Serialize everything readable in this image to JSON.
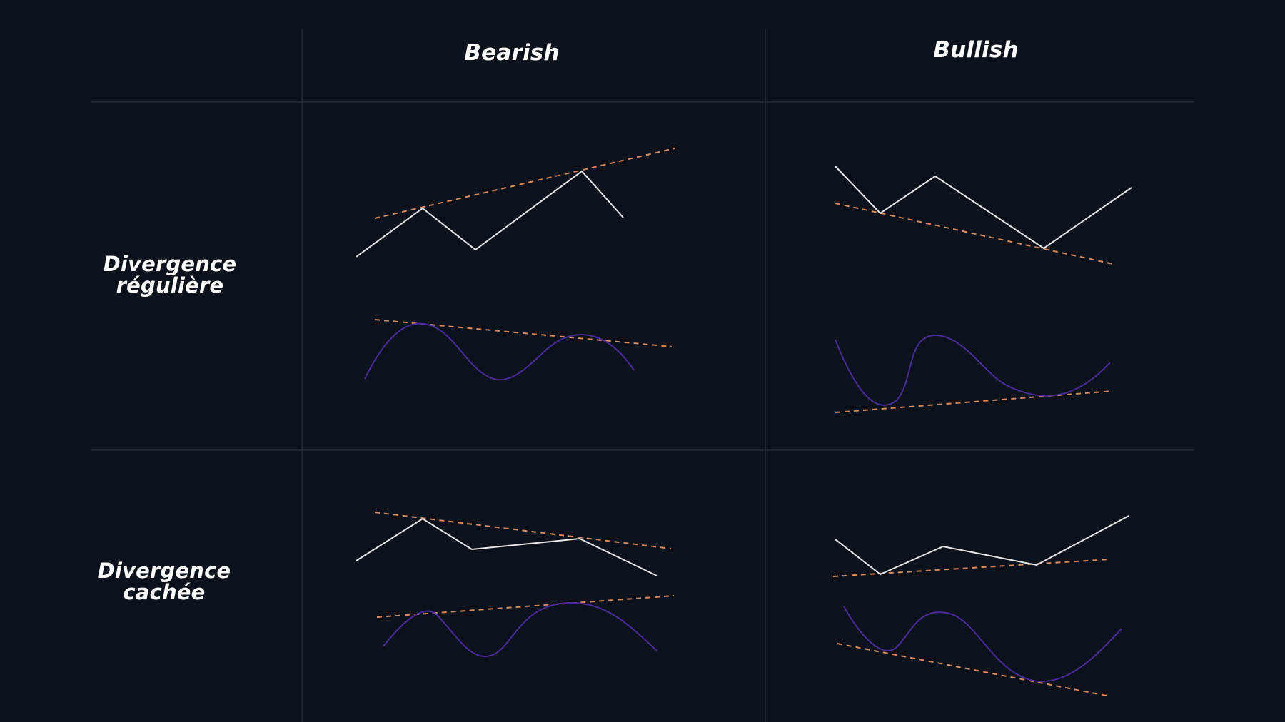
{
  "columns": {
    "bearish": "Bearish",
    "bullish": "Bullish"
  },
  "rows": {
    "regular": {
      "line1": "Divergence",
      "line2": "régulière"
    },
    "hidden": {
      "line1": "Divergence",
      "line2": "cachée"
    }
  },
  "colors": {
    "background": "#0b121b",
    "grid": "#2a3440",
    "price_line": "#e8e8ea",
    "oscillator_line": "#4b2a9a",
    "trend_line": "#d98a5c",
    "text": "#ffffff"
  }
}
